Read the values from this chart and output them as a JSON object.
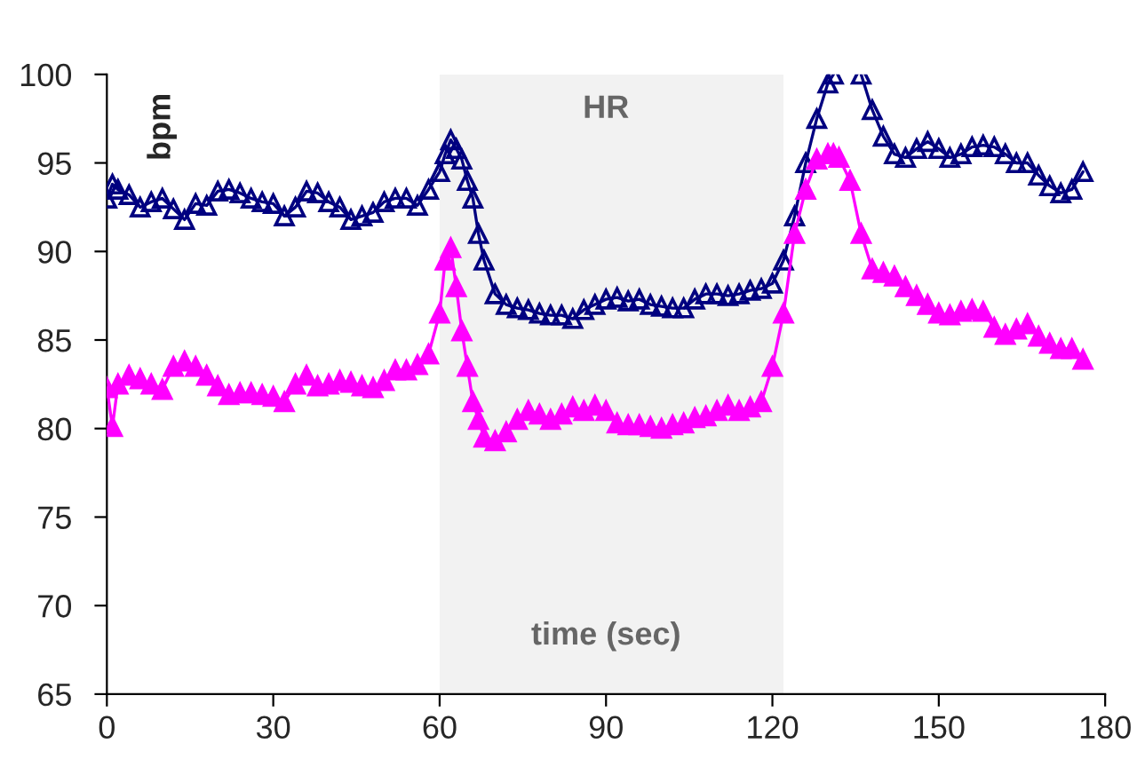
{
  "chart_data": {
    "type": "line",
    "title": "HR",
    "xlabel": "time (sec)",
    "ylabel": "bpm",
    "x": [
      0,
      1,
      2,
      4,
      6,
      8,
      10,
      12,
      14,
      16,
      18,
      20,
      22,
      24,
      26,
      28,
      30,
      32,
      34,
      36,
      38,
      40,
      42,
      44,
      46,
      48,
      50,
      52,
      54,
      56,
      58,
      60,
      61,
      62,
      63,
      64,
      65,
      66,
      67,
      68,
      70,
      72,
      74,
      76,
      78,
      80,
      82,
      84,
      86,
      88,
      90,
      92,
      94,
      96,
      98,
      100,
      102,
      104,
      106,
      108,
      110,
      112,
      114,
      116,
      118,
      120,
      122,
      124,
      126,
      128,
      130,
      131,
      132,
      134,
      136,
      138,
      140,
      142,
      144,
      146,
      148,
      150,
      152,
      154,
      156,
      158,
      160,
      162,
      164,
      166,
      168,
      170,
      172,
      174,
      176
    ],
    "series": [
      {
        "color": "#000080",
        "marker": "triangle",
        "values": [
          93.0,
          93.8,
          93.5,
          93.2,
          92.5,
          92.8,
          93.0,
          92.4,
          91.8,
          92.7,
          92.6,
          93.4,
          93.5,
          93.3,
          93.0,
          92.8,
          92.7,
          92.0,
          92.5,
          93.4,
          93.3,
          92.8,
          92.5,
          91.8,
          92.0,
          92.2,
          92.8,
          93.0,
          93.0,
          92.6,
          93.5,
          94.5,
          95.5,
          96.3,
          95.8,
          95.2,
          94.0,
          93.0,
          91.0,
          89.5,
          87.6,
          87.0,
          86.8,
          86.7,
          86.5,
          86.4,
          86.4,
          86.2,
          86.7,
          87.0,
          87.3,
          87.4,
          87.2,
          87.3,
          87.0,
          86.9,
          86.8,
          86.8,
          87.3,
          87.6,
          87.6,
          87.5,
          87.6,
          87.8,
          87.9,
          88.2,
          89.5,
          92.0,
          95.0,
          97.5,
          99.5,
          100.0,
          null,
          null,
          100.0,
          98.0,
          96.5,
          95.5,
          95.3,
          95.8,
          96.2,
          95.8,
          95.3,
          95.5,
          95.9,
          96.0,
          95.9,
          95.5,
          95.0,
          95.0,
          94.3,
          93.7,
          93.3,
          93.5,
          94.5
        ]
      },
      {
        "color": "#ff00ff",
        "marker": "triangle",
        "values": [
          82.3,
          80.1,
          82.5,
          83.0,
          82.8,
          82.5,
          82.2,
          83.5,
          83.8,
          83.5,
          83.0,
          82.4,
          81.9,
          82.0,
          82.0,
          81.9,
          81.8,
          81.5,
          82.5,
          83.0,
          82.4,
          82.5,
          82.7,
          82.6,
          82.4,
          82.3,
          82.7,
          83.3,
          83.3,
          83.6,
          84.2,
          86.5,
          89.5,
          90.2,
          88.0,
          85.5,
          83.5,
          81.5,
          80.5,
          79.5,
          79.3,
          79.8,
          80.5,
          81.0,
          80.8,
          80.5,
          80.8,
          81.2,
          81.0,
          81.3,
          81.0,
          80.3,
          80.2,
          80.2,
          80.1,
          80.0,
          80.2,
          80.3,
          80.6,
          80.7,
          81.0,
          81.3,
          81.0,
          81.2,
          81.5,
          83.5,
          86.5,
          91.0,
          93.5,
          95.2,
          95.5,
          95.5,
          95.3,
          94.0,
          91.0,
          89.0,
          88.8,
          88.6,
          88.0,
          87.5,
          87.0,
          86.5,
          86.4,
          86.6,
          86.7,
          86.6,
          85.7,
          85.3,
          85.6,
          85.9,
          85.2,
          84.8,
          84.5,
          84.5,
          83.9
        ]
      }
    ],
    "xlim": [
      0,
      180
    ],
    "xticks": [
      0,
      30,
      60,
      90,
      120,
      150,
      180
    ],
    "ylim": [
      65,
      100
    ],
    "yticks": [
      65,
      70,
      75,
      80,
      85,
      90,
      95,
      100
    ],
    "bands": [
      {
        "axis": "x",
        "from": 60,
        "to": 122,
        "color": "#f2f2f2"
      }
    ],
    "grid": false,
    "legend": false,
    "line_style": "solid"
  }
}
